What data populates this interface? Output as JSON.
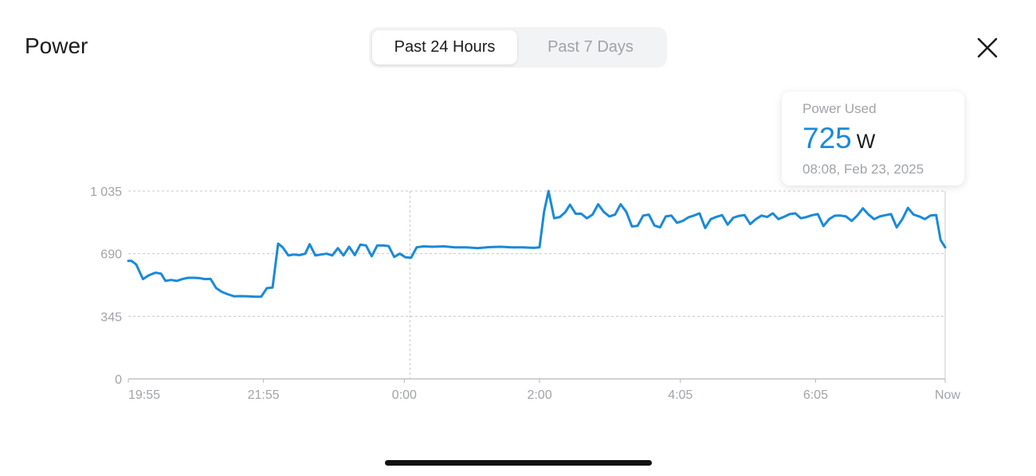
{
  "header": {
    "title": "Power",
    "tabs": [
      {
        "label": "Past 24 Hours",
        "active": true
      },
      {
        "label": "Past 7 Days",
        "active": false
      }
    ],
    "close_icon": "close-icon"
  },
  "tooltip": {
    "label": "Power Used",
    "value": "725",
    "unit": "W",
    "time": "08:08, Feb 23, 2025"
  },
  "colors": {
    "line": "#1a8ad8",
    "value": "#1a8ad8",
    "grid": "#c8c8c8",
    "axis_text": "#a0a3a8"
  },
  "chart_data": {
    "type": "line",
    "title": "",
    "xlabel": "",
    "ylabel": "",
    "ylim": [
      0,
      1035
    ],
    "y_ticks": [
      {
        "value": 0,
        "label": "0"
      },
      {
        "value": 345,
        "label": "345"
      },
      {
        "value": 690,
        "label": "690"
      },
      {
        "value": 1035,
        "label": "1 035"
      }
    ],
    "x_ticks": [
      {
        "label": "19:55",
        "x": 0
      },
      {
        "label": "21:55",
        "x": 120
      },
      {
        "label": "0:00",
        "x": 245
      },
      {
        "label": "2:00",
        "x": 365
      },
      {
        "label": "4:05",
        "x": 490
      },
      {
        "label": "6:05",
        "x": 610
      },
      {
        "label": "Now",
        "x": 725
      }
    ],
    "x_units": "minutes since 19:55",
    "x_range": [
      0,
      725
    ],
    "vertical_gridline_x": 250,
    "series": [
      {
        "values": [
          [
            0,
            650
          ],
          [
            3,
            650
          ],
          [
            7,
            630
          ],
          [
            13,
            550
          ],
          [
            18,
            570
          ],
          [
            24,
            585
          ],
          [
            29,
            580
          ],
          [
            33,
            540
          ],
          [
            38,
            545
          ],
          [
            43,
            540
          ],
          [
            48,
            550
          ],
          [
            53,
            557
          ],
          [
            58,
            557
          ],
          [
            63,
            555
          ],
          [
            68,
            550
          ],
          [
            73,
            551
          ],
          [
            78,
            500
          ],
          [
            83,
            480
          ],
          [
            88,
            467
          ],
          [
            94,
            455
          ],
          [
            100,
            456
          ],
          [
            106,
            455
          ],
          [
            112,
            453
          ],
          [
            118,
            453
          ],
          [
            123,
            500
          ],
          [
            128,
            503
          ],
          [
            133,
            745
          ],
          [
            137,
            725
          ],
          [
            142,
            680
          ],
          [
            147,
            685
          ],
          [
            152,
            682
          ],
          [
            157,
            690
          ],
          [
            161,
            742
          ],
          [
            166,
            680
          ],
          [
            171,
            685
          ],
          [
            176,
            690
          ],
          [
            181,
            680
          ],
          [
            186,
            720
          ],
          [
            191,
            680
          ],
          [
            196,
            728
          ],
          [
            201,
            682
          ],
          [
            206,
            740
          ],
          [
            211,
            735
          ],
          [
            216,
            676
          ],
          [
            221,
            735
          ],
          [
            226,
            735
          ],
          [
            231,
            732
          ],
          [
            236,
            672
          ],
          [
            241,
            690
          ],
          [
            246,
            670
          ],
          [
            251,
            668
          ],
          [
            256,
            725
          ],
          [
            262,
            730
          ],
          [
            270,
            728
          ],
          [
            280,
            730
          ],
          [
            290,
            725
          ],
          [
            300,
            725
          ],
          [
            310,
            720
          ],
          [
            320,
            726
          ],
          [
            330,
            728
          ],
          [
            340,
            725
          ],
          [
            350,
            725
          ],
          [
            360,
            722
          ],
          [
            365,
            725
          ],
          [
            369,
            920
          ],
          [
            373,
            1035
          ],
          [
            378,
            885
          ],
          [
            383,
            892
          ],
          [
            388,
            920
          ],
          [
            392,
            960
          ],
          [
            397,
            910
          ],
          [
            402,
            910
          ],
          [
            407,
            885
          ],
          [
            412,
            905
          ],
          [
            417,
            962
          ],
          [
            422,
            920
          ],
          [
            427,
            895
          ],
          [
            432,
            905
          ],
          [
            437,
            962
          ],
          [
            442,
            920
          ],
          [
            447,
            840
          ],
          [
            452,
            843
          ],
          [
            457,
            900
          ],
          [
            462,
            905
          ],
          [
            467,
            845
          ],
          [
            472,
            835
          ],
          [
            477,
            895
          ],
          [
            482,
            900
          ],
          [
            487,
            860
          ],
          [
            492,
            870
          ],
          [
            497,
            890
          ],
          [
            502,
            900
          ],
          [
            507,
            912
          ],
          [
            512,
            831
          ],
          [
            517,
            880
          ],
          [
            522,
            893
          ],
          [
            527,
            902
          ],
          [
            532,
            850
          ],
          [
            537,
            888
          ],
          [
            542,
            898
          ],
          [
            547,
            902
          ],
          [
            552,
            853
          ],
          [
            557,
            880
          ],
          [
            562,
            900
          ],
          [
            567,
            892
          ],
          [
            572,
            912
          ],
          [
            577,
            880
          ],
          [
            582,
            893
          ],
          [
            587,
            908
          ],
          [
            592,
            912
          ],
          [
            597,
            885
          ],
          [
            602,
            892
          ],
          [
            607,
            902
          ],
          [
            612,
            908
          ],
          [
            617,
            842
          ],
          [
            622,
            880
          ],
          [
            627,
            899
          ],
          [
            632,
            900
          ],
          [
            637,
            895
          ],
          [
            642,
            870
          ],
          [
            647,
            900
          ],
          [
            652,
            940
          ],
          [
            657,
            905
          ],
          [
            662,
            880
          ],
          [
            667,
            895
          ],
          [
            672,
            902
          ],
          [
            677,
            908
          ],
          [
            682,
            835
          ],
          [
            687,
            880
          ],
          [
            692,
            942
          ],
          [
            697,
            905
          ],
          [
            702,
            895
          ],
          [
            707,
            880
          ],
          [
            712,
            900
          ],
          [
            717,
            903
          ],
          [
            721,
            765
          ],
          [
            725,
            725
          ]
        ]
      }
    ]
  }
}
